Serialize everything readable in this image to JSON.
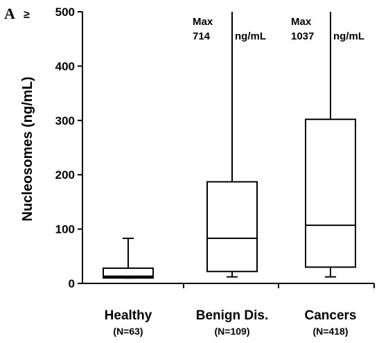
{
  "panel_label": "A",
  "ylim_marker": "≥",
  "chart_data": {
    "type": "box",
    "title": "",
    "ylabel": "Nucleosomes (ng/mL)",
    "xlabel": "",
    "ylim": [
      0,
      500
    ],
    "yticks": [
      0,
      100,
      200,
      300,
      400,
      500
    ],
    "categories": [
      {
        "name": "Healthy",
        "n_label": "(N=63)",
        "whisker_low": 10,
        "q1": 10,
        "median": 12,
        "q3": 28,
        "whisker_high": 83,
        "max_label": "",
        "max_value": ""
      },
      {
        "name": "Benign Dis.",
        "n_label": "(N=109)",
        "whisker_low": 12,
        "q1": 22,
        "median": 83,
        "q3": 187,
        "whisker_high": 714,
        "max_label": "Max",
        "max_value": "714",
        "max_unit": "ng/mL"
      },
      {
        "name": "Cancers",
        "n_label": "(N=418)",
        "whisker_low": 12,
        "q1": 30,
        "median": 107,
        "q3": 302,
        "whisker_high": 1037,
        "max_label": "Max",
        "max_value": "1037",
        "max_unit": "ng/mL"
      }
    ]
  }
}
